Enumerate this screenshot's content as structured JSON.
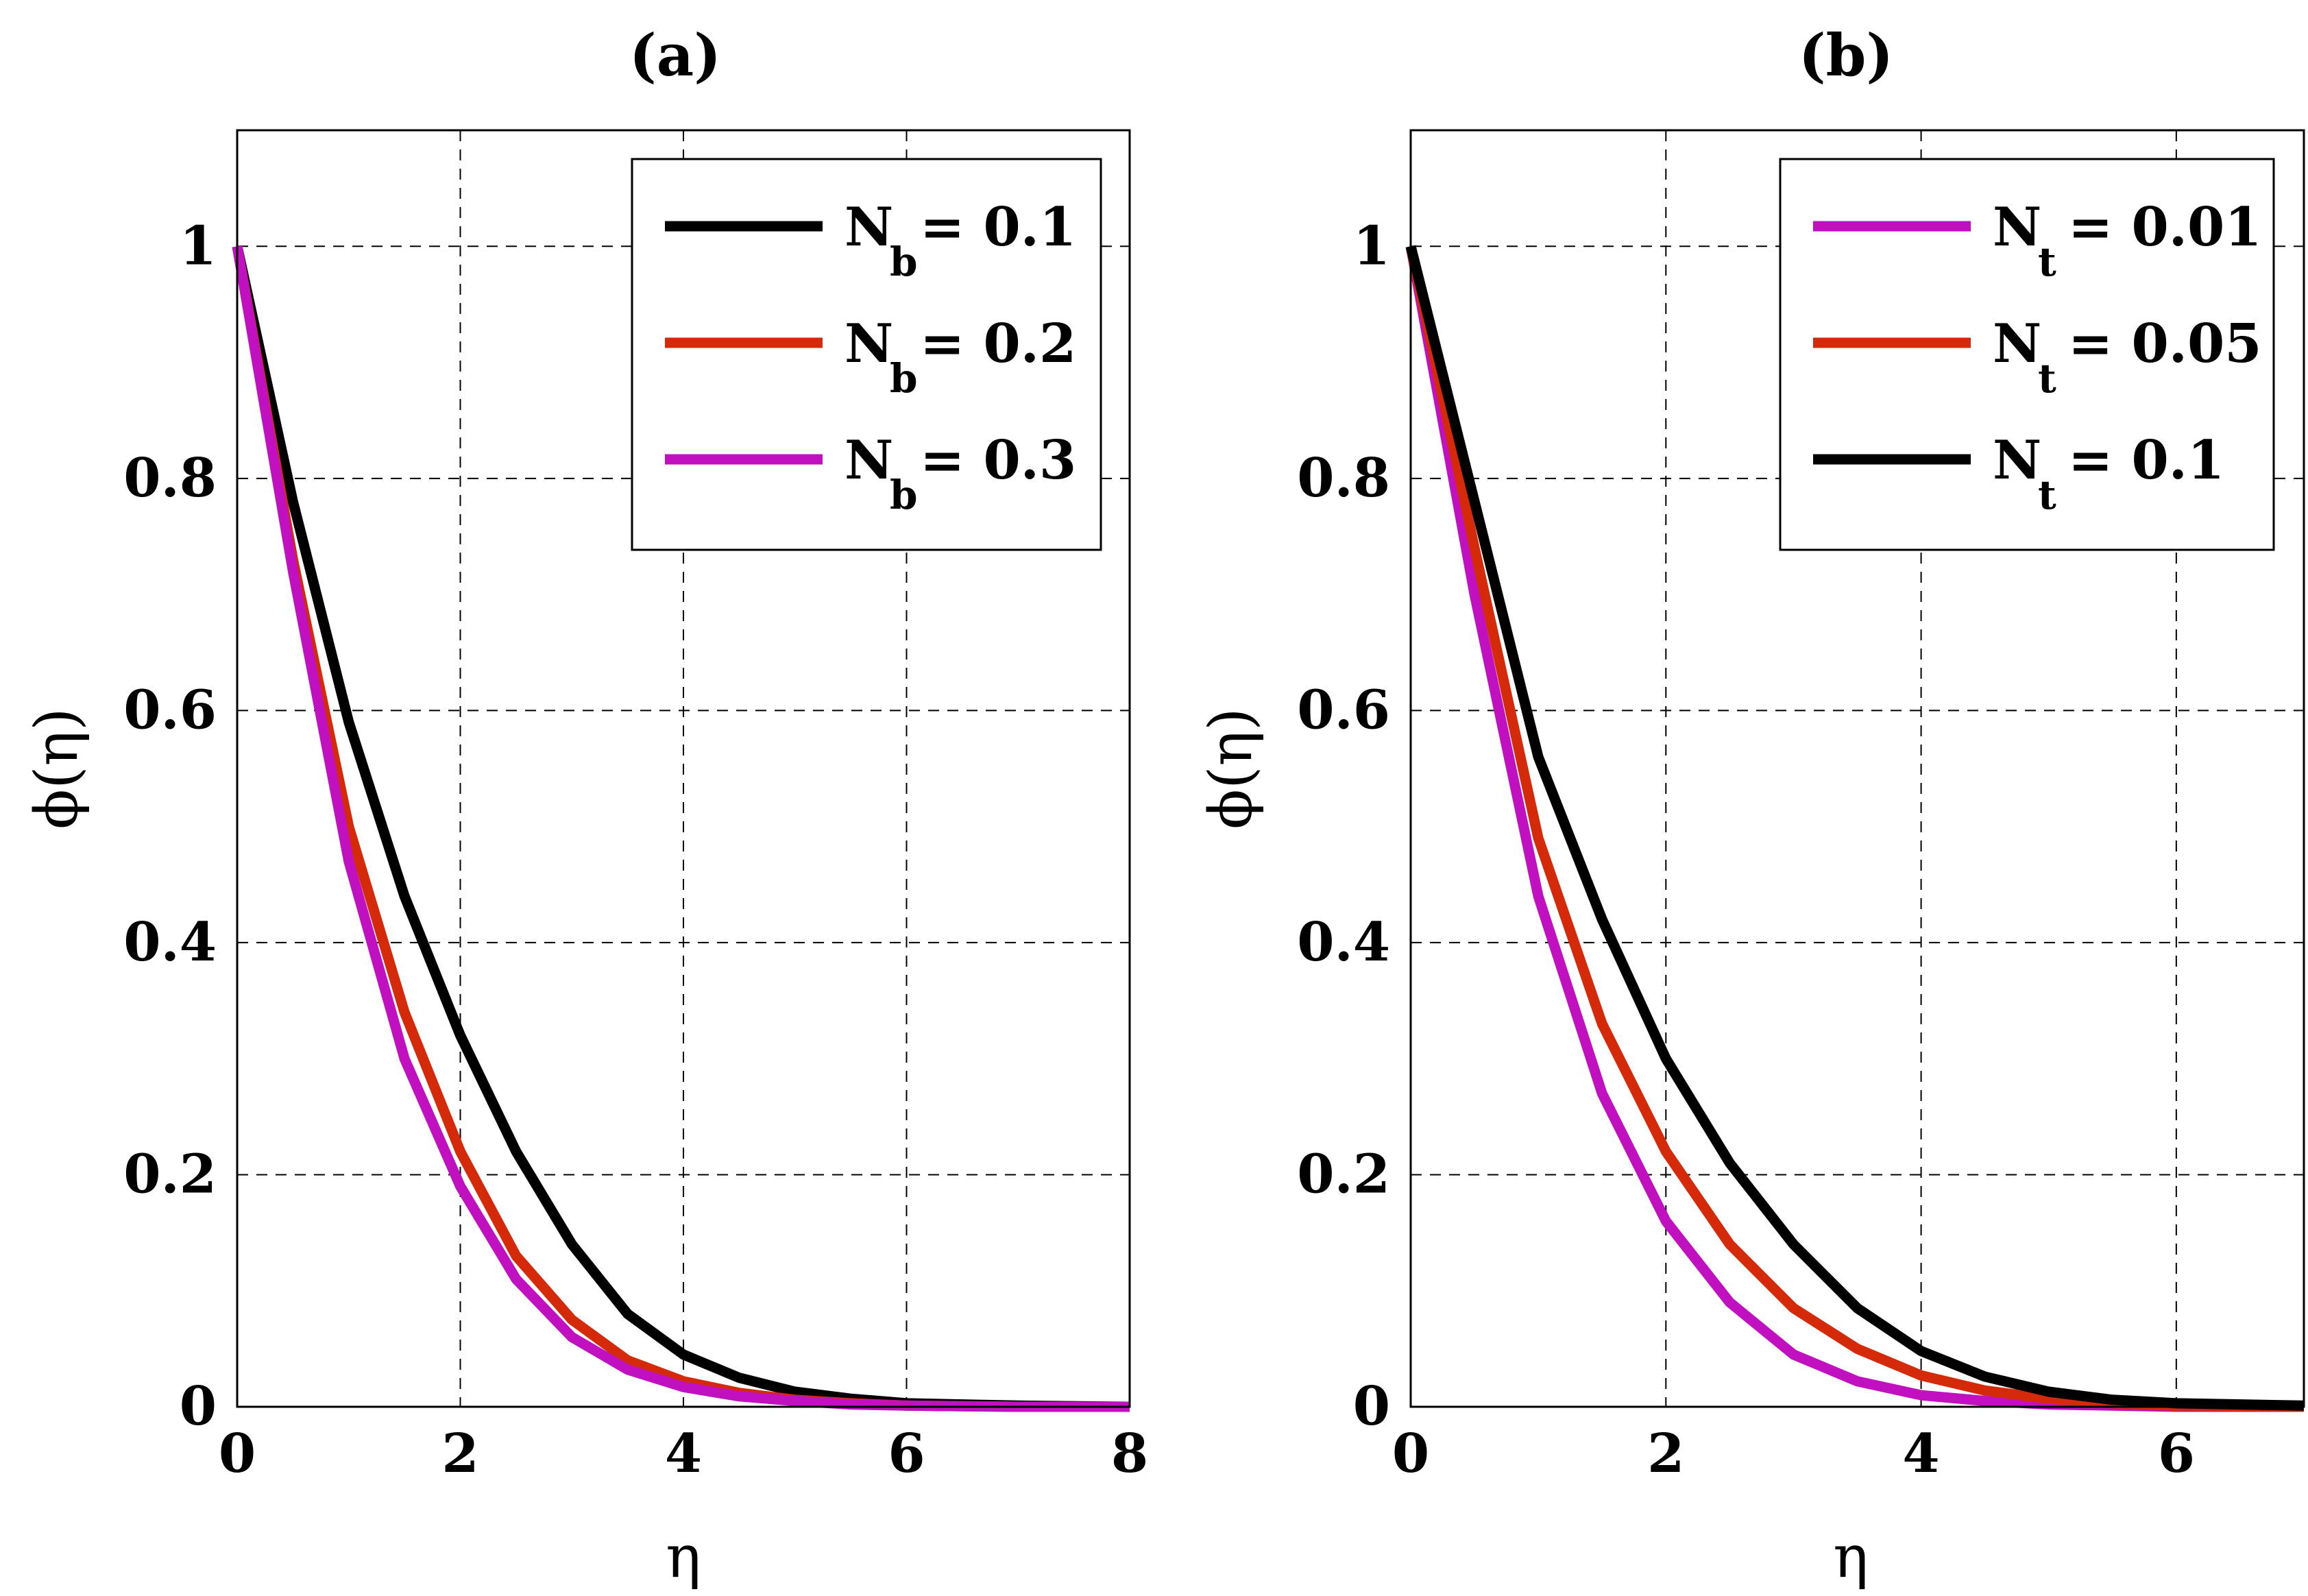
{
  "chart_data": [
    {
      "type": "line",
      "title": "(a)",
      "xlabel": "η",
      "ylabel": "ϕ(η)",
      "xlim": [
        0,
        8
      ],
      "ylim": [
        0,
        1.1
      ],
      "xticks": [
        "0",
        "2",
        "4",
        "6",
        "8"
      ],
      "yticks": [
        "0",
        "0.2",
        "0.4",
        "0.6",
        "0.8",
        "1"
      ],
      "grid": true,
      "legend_position": "top-right",
      "series": [
        {
          "name": "Nb = 0.1",
          "symbol": "N",
          "sub": "b",
          "value_label": "= 0.1",
          "color": "#000000",
          "x": [
            0,
            0.5,
            1,
            1.5,
            2,
            2.5,
            3,
            3.5,
            4,
            4.5,
            5,
            5.5,
            6,
            7,
            8
          ],
          "y": [
            1,
            0.78,
            0.59,
            0.44,
            0.32,
            0.22,
            0.14,
            0.08,
            0.045,
            0.025,
            0.013,
            0.007,
            0.003,
            0.001,
            0.0
          ]
        },
        {
          "name": "Nb = 0.2",
          "symbol": "N",
          "sub": "b",
          "value_label": "= 0.2",
          "color": "#d42a0a",
          "x": [
            0,
            0.5,
            1,
            1.5,
            2,
            2.5,
            3,
            3.5,
            4,
            4.5,
            5,
            5.5,
            6,
            7,
            8
          ],
          "y": [
            1,
            0.73,
            0.5,
            0.34,
            0.22,
            0.13,
            0.075,
            0.04,
            0.022,
            0.012,
            0.006,
            0.003,
            0.001,
            0.0,
            0.0
          ]
        },
        {
          "name": "Nb = 0.3",
          "symbol": "N",
          "sub": "b",
          "value_label": "= 0.3",
          "color": "#c010c0",
          "x": [
            0,
            0.5,
            1,
            1.5,
            2,
            2.5,
            3,
            3.5,
            4,
            4.5,
            5,
            5.5,
            6,
            7,
            8
          ],
          "y": [
            1,
            0.72,
            0.47,
            0.3,
            0.19,
            0.11,
            0.06,
            0.032,
            0.017,
            0.009,
            0.005,
            0.002,
            0.001,
            0.0,
            0.0
          ]
        }
      ]
    },
    {
      "type": "line",
      "title": "(b)",
      "xlabel": "η",
      "ylabel": "ϕ(η)",
      "xlim": [
        0,
        7
      ],
      "ylim": [
        0,
        1.1
      ],
      "xticks": [
        "0",
        "2",
        "4",
        "6"
      ],
      "yticks": [
        "0",
        "0.2",
        "0.4",
        "0.6",
        "0.8",
        "1"
      ],
      "grid": true,
      "legend_position": "top-right",
      "series": [
        {
          "name": "Nt = 0.01",
          "symbol": "N",
          "sub": "t",
          "value_label": "= 0.01",
          "color": "#c010c0",
          "x": [
            0,
            0.5,
            1,
            1.5,
            2,
            2.5,
            3,
            3.5,
            4,
            4.5,
            5,
            5.5,
            6,
            7
          ],
          "y": [
            1,
            0.7,
            0.44,
            0.27,
            0.16,
            0.09,
            0.045,
            0.022,
            0.01,
            0.005,
            0.002,
            0.001,
            0.0,
            0.0
          ]
        },
        {
          "name": "Nt = 0.05",
          "symbol": "N",
          "sub": "t",
          "value_label": "= 0.05",
          "color": "#d42a0a",
          "x": [
            0,
            0.5,
            1,
            1.5,
            2,
            2.5,
            3,
            3.5,
            4,
            4.5,
            5,
            5.5,
            6,
            7
          ],
          "y": [
            1,
            0.74,
            0.49,
            0.33,
            0.22,
            0.14,
            0.085,
            0.05,
            0.027,
            0.014,
            0.007,
            0.003,
            0.001,
            0.0
          ]
        },
        {
          "name": "Nt = 0.1",
          "symbol": "N",
          "sub": "t",
          "value_label": "= 0.1",
          "color": "#000000",
          "x": [
            0,
            0.5,
            1,
            1.5,
            2,
            2.5,
            3,
            3.5,
            4,
            4.5,
            5,
            5.5,
            6,
            7
          ],
          "y": [
            1,
            0.78,
            0.56,
            0.42,
            0.3,
            0.21,
            0.14,
            0.085,
            0.048,
            0.026,
            0.013,
            0.006,
            0.003,
            0.001
          ]
        }
      ]
    }
  ]
}
